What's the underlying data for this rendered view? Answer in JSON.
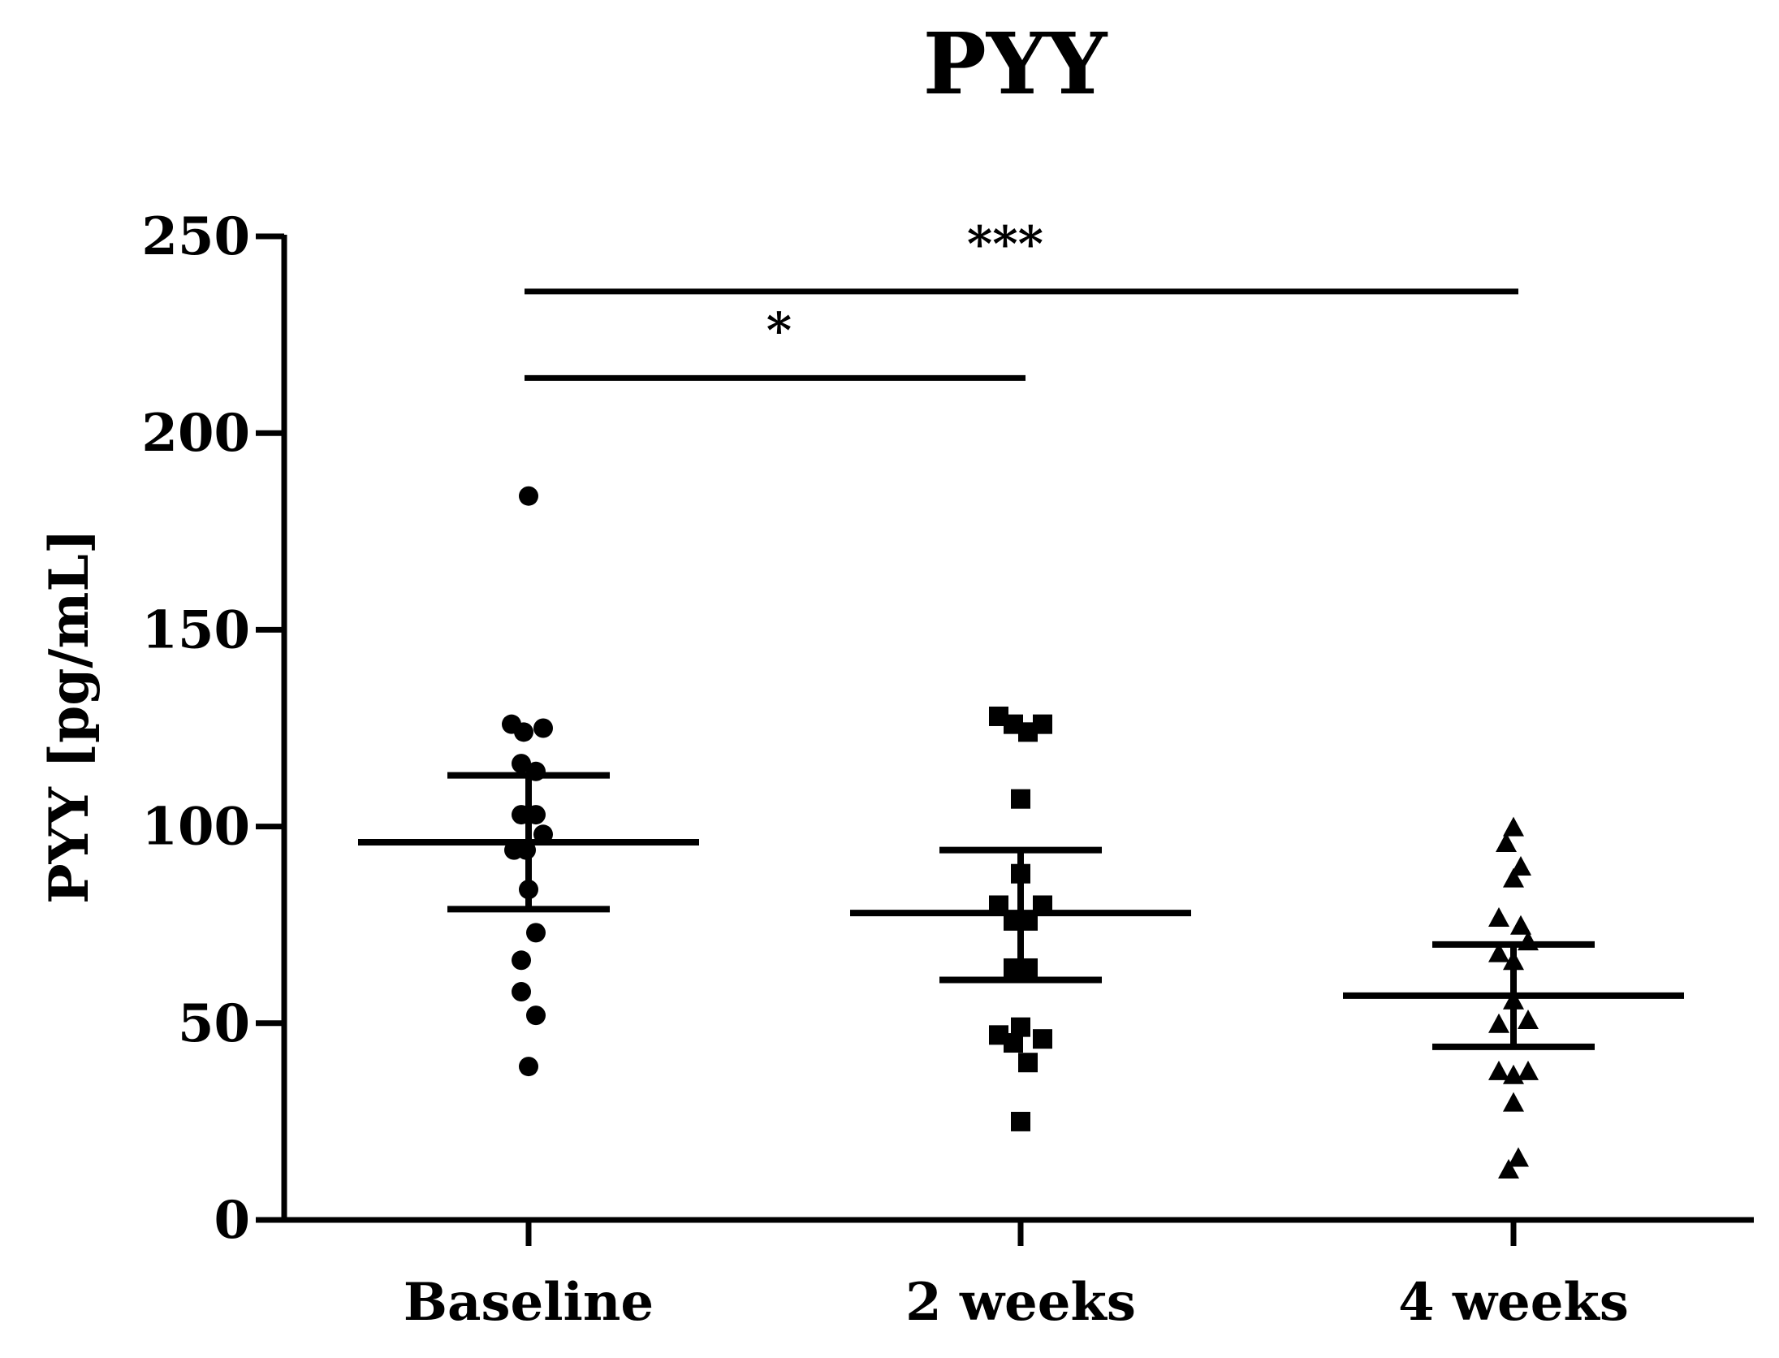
{
  "chart_data": {
    "type": "scatter",
    "title": "PYY",
    "xlabel": "",
    "ylabel": "PYY [pg/mL]",
    "ylim": [
      0,
      250
    ],
    "yticks": [
      0,
      50,
      100,
      150,
      200,
      250
    ],
    "categories": [
      "Baseline",
      "2 weeks",
      "4 weeks"
    ],
    "series": [
      {
        "name": "Baseline",
        "marker": "circle",
        "mean": 96,
        "sem_low": 79,
        "sem_high": 113,
        "points": [
          {
            "dx": 0.0,
            "y": 184
          },
          {
            "dx": -0.07,
            "y": 126
          },
          {
            "dx": -0.02,
            "y": 124
          },
          {
            "dx": 0.06,
            "y": 125
          },
          {
            "dx": -0.03,
            "y": 116
          },
          {
            "dx": 0.03,
            "y": 114
          },
          {
            "dx": -0.03,
            "y": 103
          },
          {
            "dx": 0.03,
            "y": 103
          },
          {
            "dx": 0.06,
            "y": 98
          },
          {
            "dx": -0.06,
            "y": 94
          },
          {
            "dx": -0.01,
            "y": 94
          },
          {
            "dx": 0.0,
            "y": 84
          },
          {
            "dx": 0.03,
            "y": 73
          },
          {
            "dx": -0.03,
            "y": 66
          },
          {
            "dx": -0.03,
            "y": 58
          },
          {
            "dx": 0.03,
            "y": 52
          },
          {
            "dx": 0.0,
            "y": 39
          }
        ]
      },
      {
        "name": "2 weeks",
        "marker": "square",
        "mean": 78,
        "sem_low": 61,
        "sem_high": 94,
        "points": [
          {
            "dx": -0.09,
            "y": 128
          },
          {
            "dx": -0.03,
            "y": 126
          },
          {
            "dx": 0.03,
            "y": 124
          },
          {
            "dx": 0.09,
            "y": 126
          },
          {
            "dx": 0.0,
            "y": 107
          },
          {
            "dx": 0.0,
            "y": 88
          },
          {
            "dx": -0.09,
            "y": 80
          },
          {
            "dx": 0.09,
            "y": 80
          },
          {
            "dx": -0.03,
            "y": 76
          },
          {
            "dx": 0.03,
            "y": 76
          },
          {
            "dx": -0.03,
            "y": 64
          },
          {
            "dx": 0.03,
            "y": 64
          },
          {
            "dx": 0.0,
            "y": 49
          },
          {
            "dx": -0.09,
            "y": 47
          },
          {
            "dx": -0.03,
            "y": 45
          },
          {
            "dx": 0.09,
            "y": 46
          },
          {
            "dx": 0.03,
            "y": 40
          },
          {
            "dx": 0.0,
            "y": 25
          }
        ]
      },
      {
        "name": "4 weeks",
        "marker": "triangle",
        "mean": 57,
        "sem_low": 44,
        "sem_high": 70,
        "points": [
          {
            "dx": 0.0,
            "y": 100
          },
          {
            "dx": -0.03,
            "y": 96
          },
          {
            "dx": 0.03,
            "y": 90
          },
          {
            "dx": 0.0,
            "y": 87
          },
          {
            "dx": -0.06,
            "y": 77
          },
          {
            "dx": 0.03,
            "y": 75
          },
          {
            "dx": 0.06,
            "y": 71
          },
          {
            "dx": -0.06,
            "y": 68
          },
          {
            "dx": 0.0,
            "y": 66
          },
          {
            "dx": 0.0,
            "y": 56
          },
          {
            "dx": -0.06,
            "y": 50
          },
          {
            "dx": 0.06,
            "y": 51
          },
          {
            "dx": -0.06,
            "y": 38
          },
          {
            "dx": 0.0,
            "y": 37
          },
          {
            "dx": 0.06,
            "y": 38
          },
          {
            "dx": 0.0,
            "y": 30
          },
          {
            "dx": 0.02,
            "y": 16
          },
          {
            "dx": -0.02,
            "y": 13
          }
        ]
      }
    ],
    "significance": [
      {
        "from": "Baseline",
        "to": "2 weeks",
        "y": 214,
        "label": "*"
      },
      {
        "from": "Baseline",
        "to": "4 weeks",
        "y": 236,
        "label": "***"
      }
    ]
  }
}
